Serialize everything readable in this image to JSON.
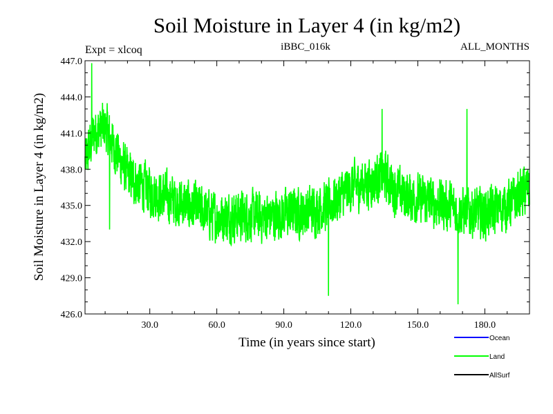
{
  "chart_data": {
    "type": "line",
    "title": "Soil Moisture in Layer 4 (in kg/m2)",
    "left_label": "Expt = xlcoq",
    "center_label": "iBBC_016k",
    "right_label": "ALL_MONTHS",
    "xlabel": "Time (in years since start)",
    "ylabel": "Soil Moisture in Layer 4 (in kg/m2)",
    "xlim": [
      1,
      200
    ],
    "ylim": [
      426.0,
      447.0
    ],
    "xticks": [
      30.0,
      60.0,
      90.0,
      120.0,
      150.0,
      180.0
    ],
    "xtick_labels": [
      "30.0",
      "60.0",
      "90.0",
      "120.0",
      "150.0",
      "180.0"
    ],
    "yticks": [
      426.0,
      429.0,
      432.0,
      435.0,
      438.0,
      441.0,
      444.0,
      447.0
    ],
    "ytick_labels": [
      "426.0",
      "429.0",
      "432.0",
      "435.0",
      "438.0",
      "441.0",
      "444.0",
      "447.0"
    ],
    "legend": [
      {
        "name": "Ocean",
        "color": "#0000ff"
      },
      {
        "name": "Land",
        "color": "#00ff00"
      },
      {
        "name": "AllSurf",
        "color": "#000000"
      }
    ],
    "series": [
      {
        "name": "Land",
        "color": "#00ff00",
        "samples_per_unit": 12,
        "trend_x": [
          1,
          5,
          10,
          15,
          20,
          30,
          40,
          50,
          60,
          70,
          80,
          90,
          100,
          110,
          120,
          130,
          135,
          140,
          150,
          160,
          170,
          180,
          190,
          200
        ],
        "trend_y": [
          438.5,
          441.0,
          441.5,
          439.5,
          437.5,
          436.2,
          435.5,
          434.8,
          434.0,
          434.2,
          434.0,
          434.3,
          434.5,
          435.0,
          436.5,
          437.0,
          437.5,
          436.2,
          435.5,
          435.2,
          434.5,
          434.3,
          435.0,
          436.5
        ],
        "amplitude": 2.8,
        "markers_x": [
          4,
          12,
          110,
          134,
          168,
          172
        ],
        "markers_y": [
          446.8,
          433.0,
          427.5,
          443.0,
          426.8,
          443.0
        ]
      }
    ]
  }
}
